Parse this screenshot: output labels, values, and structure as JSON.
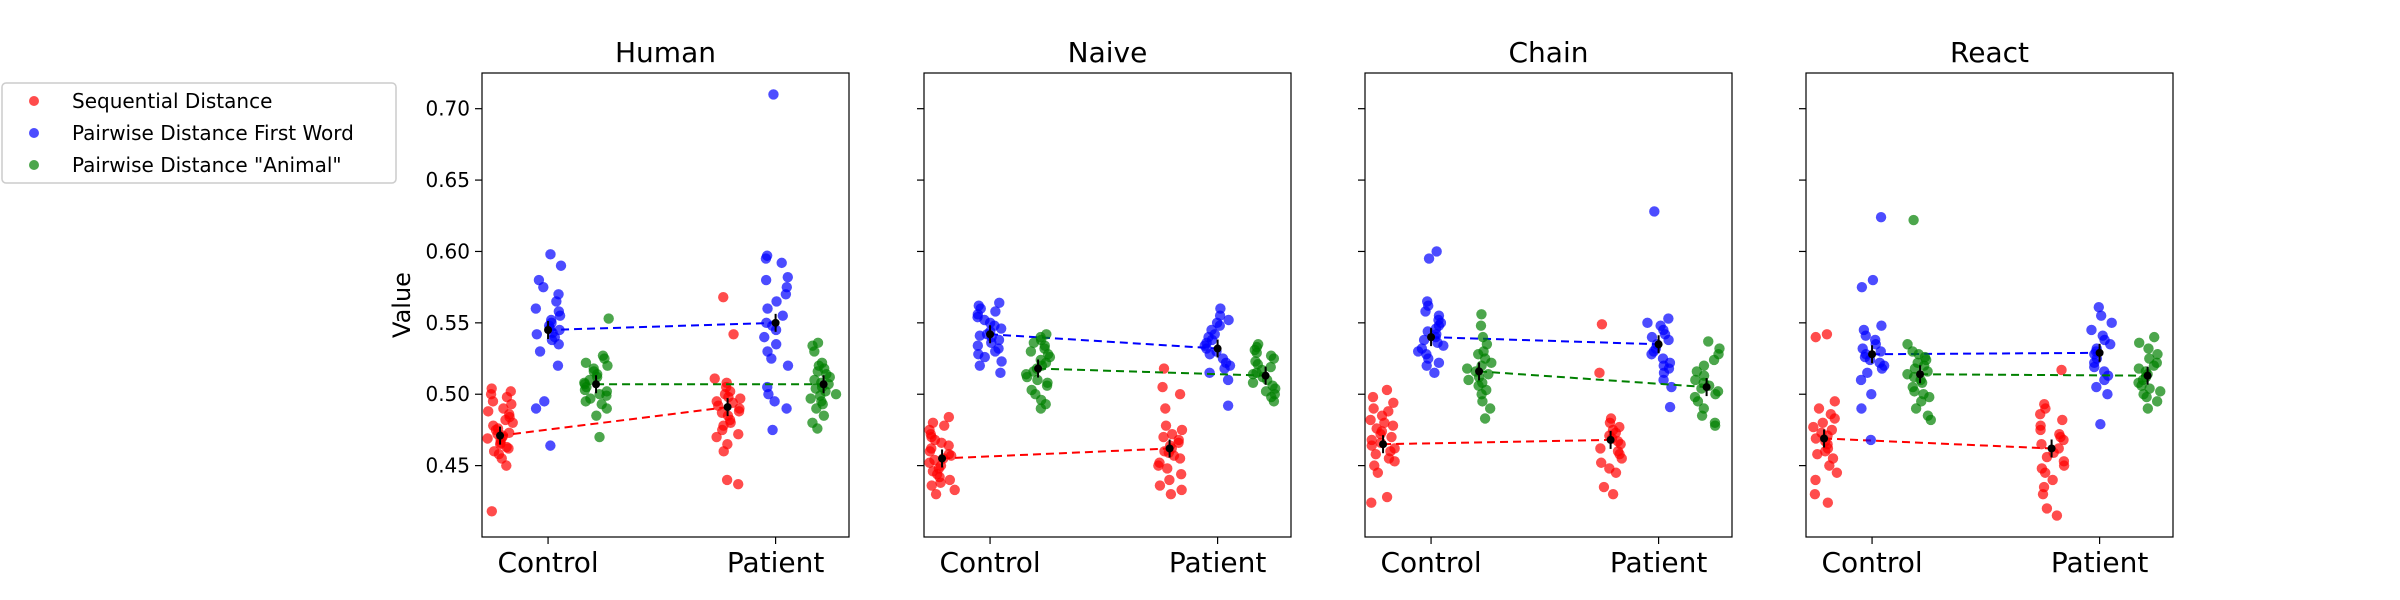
{
  "figure": {
    "ylabel": "Value",
    "yticks": [
      "0.45",
      "0.50",
      "0.55",
      "0.60",
      "0.65",
      "0.70"
    ],
    "groups": [
      "Control",
      "Patient"
    ]
  },
  "legend": {
    "placement": "left, outside plots",
    "items": [
      {
        "label": "Sequential Distance",
        "color": "#ff0000"
      },
      {
        "label": "Pairwise Distance First Word",
        "color": "#0000ff"
      },
      {
        "label": "Pairwise Distance \"Animal\"",
        "color": "#008000"
      }
    ]
  },
  "chart_data": [
    {
      "type": "scatter",
      "title": "Human",
      "categories": [
        "Control",
        "Patient"
      ],
      "ylabel": "Value",
      "ylim": [
        0.4,
        0.725
      ],
      "grid": false,
      "series": [
        {
          "name": "Sequential Distance",
          "color": "#ff0000",
          "means": [
            0.471,
            0.491
          ],
          "values": [
            [
              0.418,
              0.45,
              0.455,
              0.458,
              0.46,
              0.462,
              0.463,
              0.465,
              0.466,
              0.468,
              0.469,
              0.47,
              0.471,
              0.472,
              0.473,
              0.475,
              0.476,
              0.478,
              0.48,
              0.482,
              0.484,
              0.486,
              0.488,
              0.49,
              0.493,
              0.495,
              0.498,
              0.5,
              0.502,
              0.504
            ],
            [
              0.437,
              0.44,
              0.46,
              0.465,
              0.47,
              0.472,
              0.475,
              0.478,
              0.48,
              0.482,
              0.485,
              0.487,
              0.488,
              0.49,
              0.492,
              0.494,
              0.495,
              0.497,
              0.498,
              0.5,
              0.502,
              0.505,
              0.508,
              0.511,
              0.542,
              0.568
            ]
          ]
        },
        {
          "name": "Pairwise Distance First Word",
          "color": "#0000ff",
          "means": [
            0.545,
            0.55
          ],
          "values": [
            [
              0.464,
              0.49,
              0.495,
              0.52,
              0.53,
              0.535,
              0.538,
              0.54,
              0.542,
              0.543,
              0.545,
              0.546,
              0.548,
              0.55,
              0.552,
              0.555,
              0.558,
              0.56,
              0.565,
              0.57,
              0.575,
              0.58,
              0.59,
              0.598
            ],
            [
              0.475,
              0.49,
              0.495,
              0.5,
              0.505,
              0.52,
              0.525,
              0.53,
              0.535,
              0.54,
              0.545,
              0.548,
              0.55,
              0.555,
              0.56,
              0.565,
              0.57,
              0.575,
              0.58,
              0.582,
              0.592,
              0.595,
              0.597,
              0.71
            ]
          ]
        },
        {
          "name": "Pairwise Distance \"Animal\"",
          "color": "#008000",
          "means": [
            0.507,
            0.507
          ],
          "values": [
            [
              0.47,
              0.485,
              0.49,
              0.493,
              0.495,
              0.497,
              0.499,
              0.5,
              0.502,
              0.503,
              0.505,
              0.507,
              0.508,
              0.51,
              0.512,
              0.514,
              0.516,
              0.518,
              0.52,
              0.522,
              0.525,
              0.527,
              0.553
            ],
            [
              0.476,
              0.48,
              0.485,
              0.49,
              0.493,
              0.495,
              0.497,
              0.499,
              0.5,
              0.502,
              0.504,
              0.505,
              0.507,
              0.508,
              0.51,
              0.512,
              0.514,
              0.516,
              0.518,
              0.52,
              0.522,
              0.53,
              0.534,
              0.536
            ]
          ]
        }
      ]
    },
    {
      "type": "scatter",
      "title": "Naive",
      "categories": [
        "Control",
        "Patient"
      ],
      "ylim": [
        0.4,
        0.725
      ],
      "grid": false,
      "series": [
        {
          "name": "Sequential Distance",
          "color": "#ff0000",
          "means": [
            0.455,
            0.462
          ],
          "values": [
            [
              0.43,
              0.433,
              0.436,
              0.438,
              0.44,
              0.442,
              0.444,
              0.446,
              0.448,
              0.45,
              0.452,
              0.454,
              0.455,
              0.457,
              0.458,
              0.46,
              0.462,
              0.464,
              0.466,
              0.468,
              0.47,
              0.472,
              0.475,
              0.478,
              0.48,
              0.484
            ],
            [
              0.43,
              0.433,
              0.436,
              0.44,
              0.444,
              0.448,
              0.45,
              0.452,
              0.455,
              0.457,
              0.459,
              0.46,
              0.462,
              0.464,
              0.466,
              0.468,
              0.47,
              0.472,
              0.475,
              0.478,
              0.49,
              0.5,
              0.505,
              0.518
            ]
          ]
        },
        {
          "name": "Pairwise Distance First Word",
          "color": "#0000ff",
          "means": [
            0.542,
            0.532
          ],
          "values": [
            [
              0.515,
              0.52,
              0.523,
              0.526,
              0.528,
              0.53,
              0.532,
              0.534,
              0.536,
              0.538,
              0.54,
              0.541,
              0.542,
              0.544,
              0.546,
              0.548,
              0.55,
              0.552,
              0.554,
              0.556,
              0.558,
              0.56,
              0.562,
              0.564
            ],
            [
              0.492,
              0.51,
              0.515,
              0.518,
              0.52,
              0.522,
              0.525,
              0.528,
              0.53,
              0.532,
              0.534,
              0.536,
              0.538,
              0.54,
              0.542,
              0.545,
              0.548,
              0.55,
              0.552,
              0.555,
              0.56
            ]
          ]
        },
        {
          "name": "Pairwise Distance \"Animal\"",
          "color": "#008000",
          "means": [
            0.518,
            0.513
          ],
          "values": [
            [
              0.49,
              0.493,
              0.496,
              0.5,
              0.503,
              0.506,
              0.508,
              0.51,
              0.512,
              0.514,
              0.516,
              0.518,
              0.52,
              0.522,
              0.524,
              0.526,
              0.528,
              0.53,
              0.532,
              0.534,
              0.536,
              0.538,
              0.54,
              0.542
            ],
            [
              0.495,
              0.498,
              0.5,
              0.502,
              0.504,
              0.506,
              0.508,
              0.51,
              0.512,
              0.514,
              0.515,
              0.517,
              0.519,
              0.521,
              0.523,
              0.525,
              0.527,
              0.529,
              0.531,
              0.533,
              0.535
            ]
          ]
        }
      ]
    },
    {
      "type": "scatter",
      "title": "Chain",
      "categories": [
        "Control",
        "Patient"
      ],
      "ylim": [
        0.4,
        0.725
      ],
      "grid": false,
      "series": [
        {
          "name": "Sequential Distance",
          "color": "#ff0000",
          "means": [
            0.465,
            0.468
          ],
          "values": [
            [
              0.424,
              0.428,
              0.445,
              0.45,
              0.453,
              0.455,
              0.458,
              0.46,
              0.462,
              0.464,
              0.466,
              0.468,
              0.47,
              0.472,
              0.474,
              0.476,
              0.478,
              0.48,
              0.482,
              0.485,
              0.488,
              0.49,
              0.494,
              0.498,
              0.503
            ],
            [
              0.43,
              0.435,
              0.445,
              0.448,
              0.452,
              0.455,
              0.458,
              0.46,
              0.462,
              0.465,
              0.467,
              0.469,
              0.471,
              0.473,
              0.475,
              0.477,
              0.48,
              0.483,
              0.515,
              0.549
            ]
          ]
        },
        {
          "name": "Pairwise Distance First Word",
          "color": "#0000ff",
          "means": [
            0.54,
            0.535
          ],
          "values": [
            [
              0.515,
              0.52,
              0.522,
              0.525,
              0.528,
              0.53,
              0.532,
              0.534,
              0.536,
              0.538,
              0.54,
              0.542,
              0.544,
              0.546,
              0.548,
              0.55,
              0.552,
              0.555,
              0.558,
              0.562,
              0.565,
              0.595,
              0.6
            ],
            [
              0.491,
              0.505,
              0.51,
              0.515,
              0.518,
              0.52,
              0.522,
              0.525,
              0.528,
              0.53,
              0.532,
              0.535,
              0.538,
              0.54,
              0.542,
              0.545,
              0.548,
              0.55,
              0.553,
              0.628
            ]
          ]
        },
        {
          "name": "Pairwise Distance \"Animal\"",
          "color": "#008000",
          "means": [
            0.516,
            0.505
          ],
          "values": [
            [
              0.483,
              0.49,
              0.495,
              0.5,
              0.503,
              0.506,
              0.508,
              0.51,
              0.512,
              0.514,
              0.516,
              0.518,
              0.52,
              0.522,
              0.525,
              0.528,
              0.53,
              0.535,
              0.54,
              0.548,
              0.556
            ],
            [
              0.478,
              0.48,
              0.485,
              0.49,
              0.495,
              0.498,
              0.5,
              0.502,
              0.504,
              0.506,
              0.508,
              0.51,
              0.513,
              0.516,
              0.52,
              0.524,
              0.528,
              0.532,
              0.537
            ]
          ]
        }
      ]
    },
    {
      "type": "scatter",
      "title": "React",
      "categories": [
        "Control",
        "Patient"
      ],
      "ylim": [
        0.4,
        0.725
      ],
      "grid": false,
      "series": [
        {
          "name": "Sequential Distance",
          "color": "#ff0000",
          "means": [
            0.469,
            0.462
          ],
          "values": [
            [
              0.424,
              0.43,
              0.44,
              0.445,
              0.45,
              0.455,
              0.458,
              0.46,
              0.462,
              0.465,
              0.467,
              0.469,
              0.471,
              0.473,
              0.475,
              0.477,
              0.48,
              0.483,
              0.486,
              0.49,
              0.495,
              0.54,
              0.542
            ],
            [
              0.415,
              0.42,
              0.43,
              0.435,
              0.44,
              0.445,
              0.448,
              0.45,
              0.453,
              0.456,
              0.459,
              0.462,
              0.465,
              0.468,
              0.47,
              0.472,
              0.475,
              0.478,
              0.482,
              0.486,
              0.49,
              0.493,
              0.517
            ]
          ]
        },
        {
          "name": "Pairwise Distance First Word",
          "color": "#0000ff",
          "means": [
            0.528,
            0.529
          ],
          "values": [
            [
              0.468,
              0.49,
              0.5,
              0.51,
              0.515,
              0.518,
              0.52,
              0.522,
              0.524,
              0.526,
              0.528,
              0.53,
              0.532,
              0.535,
              0.538,
              0.541,
              0.545,
              0.548,
              0.575,
              0.58,
              0.624
            ],
            [
              0.479,
              0.5,
              0.505,
              0.51,
              0.513,
              0.516,
              0.519,
              0.522,
              0.525,
              0.528,
              0.53,
              0.532,
              0.535,
              0.538,
              0.541,
              0.545,
              0.55,
              0.555,
              0.561
            ]
          ]
        },
        {
          "name": "Pairwise Distance \"Animal\"",
          "color": "#008000",
          "means": [
            0.514,
            0.513
          ],
          "values": [
            [
              0.482,
              0.485,
              0.49,
              0.495,
              0.498,
              0.5,
              0.502,
              0.505,
              0.508,
              0.51,
              0.512,
              0.514,
              0.516,
              0.518,
              0.52,
              0.522,
              0.524,
              0.526,
              0.528,
              0.53,
              0.535,
              0.622
            ],
            [
              0.49,
              0.495,
              0.498,
              0.5,
              0.502,
              0.504,
              0.506,
              0.508,
              0.51,
              0.512,
              0.514,
              0.516,
              0.518,
              0.52,
              0.522,
              0.525,
              0.528,
              0.532,
              0.536,
              0.54
            ]
          ]
        }
      ]
    }
  ]
}
